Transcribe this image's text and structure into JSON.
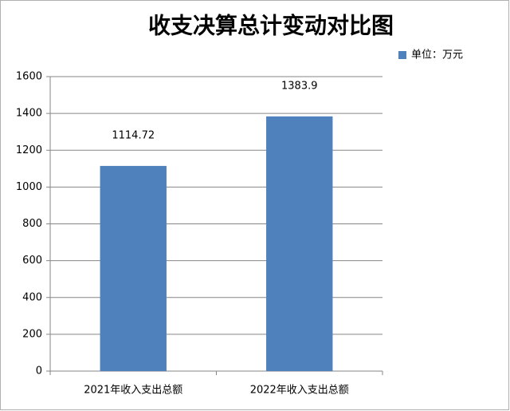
{
  "chart_data": {
    "type": "bar",
    "title": "收支决算总计变动对比图",
    "categories": [
      "2021年收入支出总额",
      "2022年收入支出总额"
    ],
    "series": [
      {
        "name": "单位：万元",
        "color": "#4f81bd",
        "values": [
          1114.72,
          1383.9
        ]
      }
    ],
    "ylim": [
      0,
      1600
    ],
    "yticks": [
      0,
      200,
      400,
      600,
      800,
      1000,
      1200,
      1400,
      1600
    ],
    "grid": true,
    "legend": "top-right"
  }
}
